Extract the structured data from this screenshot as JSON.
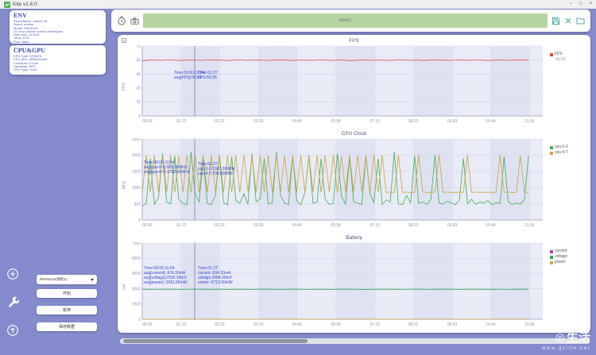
{
  "window": {
    "title": "Kite v1.6.0",
    "controls": {
      "minimize": "−",
      "maximize": "□",
      "close": "×"
    }
  },
  "sidebar": {
    "env": {
      "title": "ENV",
      "lines": [
        "PhoneName: realme 15",
        "Brand: realme",
        "Model: RMX5110",
        "UI: error please contact developers",
        "Ram size: 15.5GB",
        "Temp: 6.9C",
        "Root: false",
        "Resolution: 1080x2392 480dpi"
      ]
    },
    "cpugpu": {
      "title": "CPU&GPU",
      "lines": [
        "CPU Type: MT6878",
        "CPU Arch: ARMv8,64bit",
        "CoreNum: 8 Core",
        "Hardware: MTK",
        "GPU Type: none"
      ]
    },
    "device_select": {
      "value": "RMX5110(进程1)"
    },
    "buttons": {
      "start": "开始",
      "pause": "暂停",
      "save": "保存数据"
    }
  },
  "toolbar": {
    "label_value": "label1"
  },
  "watermark": {
    "text": "生活",
    "url": "www.gslife.net"
  },
  "chart_data": [
    {
      "type": "line",
      "title": "FPS",
      "ylabel": "FPS",
      "ylim": [
        0,
        75
      ],
      "yticks": [
        0,
        15,
        30,
        45,
        60,
        75
      ],
      "x_ticks": [
        "00:00",
        "01:12",
        "02:23",
        "03:35",
        "04:46",
        "05:58",
        "07:10",
        "08:21",
        "09:33",
        "10:44",
        "11:56"
      ],
      "cursor_time": "01:37",
      "legend": [
        {
          "label": "FPS",
          "value": "59.93",
          "color": "#e14b4b"
        }
      ],
      "tooltips": {
        "summary": [
          "Time:00:00-11:54",
          "avg[FPS]:59.61"
        ],
        "cursor": [
          "Time:01:37",
          "FPS:59.95"
        ]
      },
      "series": [
        {
          "name": "FPS",
          "color": "#e14b4b",
          "values": [
            59.0,
            59.9,
            60.0,
            59.7,
            60.1,
            59.8,
            59.5,
            60.0,
            59.9,
            59.6,
            60.1,
            59.8,
            60.0,
            59.4,
            59.9,
            60.1,
            59.7,
            59.9,
            60.0,
            59.6,
            59.8,
            60.1,
            59.9,
            59.5,
            60.0,
            59.8,
            59.7,
            60.1,
            59.9,
            59.6,
            60.0,
            59.8,
            59.4,
            59.9,
            60.1,
            59.7,
            60.0,
            59.8,
            59.6,
            60.1,
            59.9,
            59.7,
            60.0,
            59.5,
            59.9,
            60.1,
            59.8,
            59.6,
            60.0,
            59.9,
            59.7,
            60.1,
            59.8,
            59.5,
            60.0,
            59.9,
            59.7,
            60.1,
            59.9,
            59.9
          ]
        }
      ]
    },
    {
      "type": "line",
      "title": "CPU Clock",
      "ylabel": "MHz",
      "ylim": [
        0,
        2500
      ],
      "yticks": [
        0,
        500,
        1000,
        1500,
        2000,
        2500
      ],
      "x_ticks": [
        "00:00",
        "01:12",
        "02:23",
        "03:35",
        "04:46",
        "05:58",
        "07:10",
        "08:21",
        "09:33",
        "10:44",
        "11:56"
      ],
      "cursor_time": "01:37",
      "legend": [
        {
          "label": "cpu:0-3",
          "color": "#3fae4e"
        },
        {
          "label": "cpu:4-7",
          "color": "#c9a63d"
        }
      ],
      "tooltips": {
        "summary": [
          "Time:00:00-11:54",
          "avg[cpu:0-3]:905.36MHz",
          "avg[cpu:4-7]:1792.96MHz"
        ],
        "cursor": [
          "Time:01:37",
          "cpu:0-3:1387.20MHz",
          "cpu:4-7:700.80MHz"
        ]
      },
      "series": [
        {
          "name": "cpu:0-3",
          "color": "#3fae4e",
          "values": [
            430,
            520,
            1900,
            480,
            700,
            2050,
            560,
            490,
            1980,
            640,
            510,
            470,
            2100,
            820,
            560,
            1900,
            500,
            480,
            760,
            2000,
            540,
            470,
            1950,
            600,
            520,
            810,
            480,
            2050,
            560,
            640,
            1900,
            490,
            530,
            2100,
            760,
            520,
            480,
            1980,
            590,
            470,
            850,
            2000,
            520,
            560,
            1900,
            640,
            480,
            510,
            2050,
            730,
            490,
            1950,
            560,
            520,
            470,
            2000,
            810,
            540,
            1900,
            480,
            620,
            560,
            2100,
            500,
            470,
            760,
            530,
            1980,
            510,
            560,
            480,
            640,
            2000,
            520,
            490,
            580,
            530,
            470,
            620,
            1900,
            500,
            640,
            480,
            560,
            520,
            600,
            470,
            540,
            510,
            1950,
            560,
            480,
            520,
            490,
            620,
            1980
          ]
        },
        {
          "name": "cpu:4-7",
          "color": "#c9a63d",
          "values": [
            850,
            2000,
            860,
            1990,
            850,
            2010,
            870,
            2000,
            850,
            1980,
            860,
            2000,
            850,
            2020,
            860,
            1990,
            850,
            2000,
            870,
            2010,
            850,
            1990,
            860,
            2000,
            850,
            2010,
            870,
            1980,
            850,
            2000,
            860,
            1990,
            850,
            2020,
            870,
            2000,
            850,
            1990,
            860,
            2010,
            850,
            2000,
            870,
            1990,
            850,
            2000,
            860,
            2010,
            850,
            1980,
            860,
            2000,
            850,
            2000,
            870,
            1990,
            850,
            2010,
            860,
            2000,
            850,
            860,
            850,
            2000,
            850,
            860,
            850,
            850,
            2010,
            860,
            850,
            850,
            860,
            2000,
            850,
            860,
            850,
            850,
            860,
            850,
            2000,
            850,
            860,
            850,
            850,
            860,
            850,
            850,
            2010,
            850,
            860,
            850,
            850,
            2000,
            860,
            850
          ]
        }
      ]
    },
    {
      "type": "line",
      "title": "Battery",
      "ylabel": "mA",
      "ylim": [
        0,
        7500
      ],
      "yticks": [
        0,
        1500,
        3000,
        4500,
        6000,
        7500
      ],
      "x_ticks": [
        "00:00",
        "01:12",
        "02:23",
        "03:35",
        "04:46",
        "05:58",
        "07:10",
        "08:21",
        "09:33",
        "10:44",
        "11:56"
      ],
      "cursor_time": "01:37",
      "legend": [
        {
          "label": "current",
          "color": "#c23ab5"
        },
        {
          "label": "voltage",
          "color": "#2fa05e"
        },
        {
          "label": "power",
          "color": "#c3b93b"
        }
      ],
      "tooltips": {
        "summary": [
          "Time:00:00-11:54",
          "avg[current]:-974.33mA",
          "avg[voltage]:2955.39mV",
          "avg[power]:-2431.66mW"
        ],
        "cursor": [
          "Time:01:37",
          "current:-934.20mA",
          "voltage:2904.00mV",
          "power:-2713.00mW"
        ]
      },
      "series": [
        {
          "name": "current",
          "color": "#c23ab5",
          "values": [
            -940,
            -1010,
            -905,
            -980,
            -930,
            -1000,
            -950,
            -890,
            -1020,
            -960,
            -915,
            -985,
            -945,
            -1005,
            -925,
            -970,
            -950,
            -900,
            -1010,
            -955,
            -935,
            -990,
            -945,
            -880,
            -1015,
            -960,
            -920,
            -975,
            -950,
            -1000,
            -930,
            -965,
            -945,
            -905,
            -1010,
            -950,
            -925,
            -985,
            -940,
            -960
          ]
        },
        {
          "name": "voltage",
          "color": "#2fa05e",
          "values": [
            2955,
            2948,
            2960,
            2952,
            2946,
            2958,
            2950,
            2944,
            2956,
            2949,
            2953,
            2947,
            2959,
            2951,
            2945,
            2957,
            2950,
            2948,
            2954,
            2946,
            2952,
            2958,
            2949,
            2944,
            2956,
            2950,
            2947,
            2953,
            2959,
            2945,
            2951,
            2957,
            2948,
            2950,
            2954,
            2946,
            2952,
            2949,
            2955,
            2950
          ]
        },
        {
          "name": "power",
          "color": "#c3b93b",
          "values": [
            -2400,
            -2520,
            -2350,
            -2480,
            -2410,
            -2550,
            -2430,
            -2330,
            -2560,
            -2450,
            -2380,
            -2500,
            -2420,
            -2540,
            -2370,
            -2470,
            -2430,
            -2340,
            -2555,
            -2445,
            -2395,
            -2510,
            -2425,
            -2320,
            -2565,
            -2455,
            -2375,
            -2490,
            -2435,
            -2530,
            -2385,
            -2465,
            -2440,
            -2355,
            -2545,
            -2430,
            -2390,
            -2505,
            -2415,
            -2460
          ]
        }
      ]
    }
  ]
}
